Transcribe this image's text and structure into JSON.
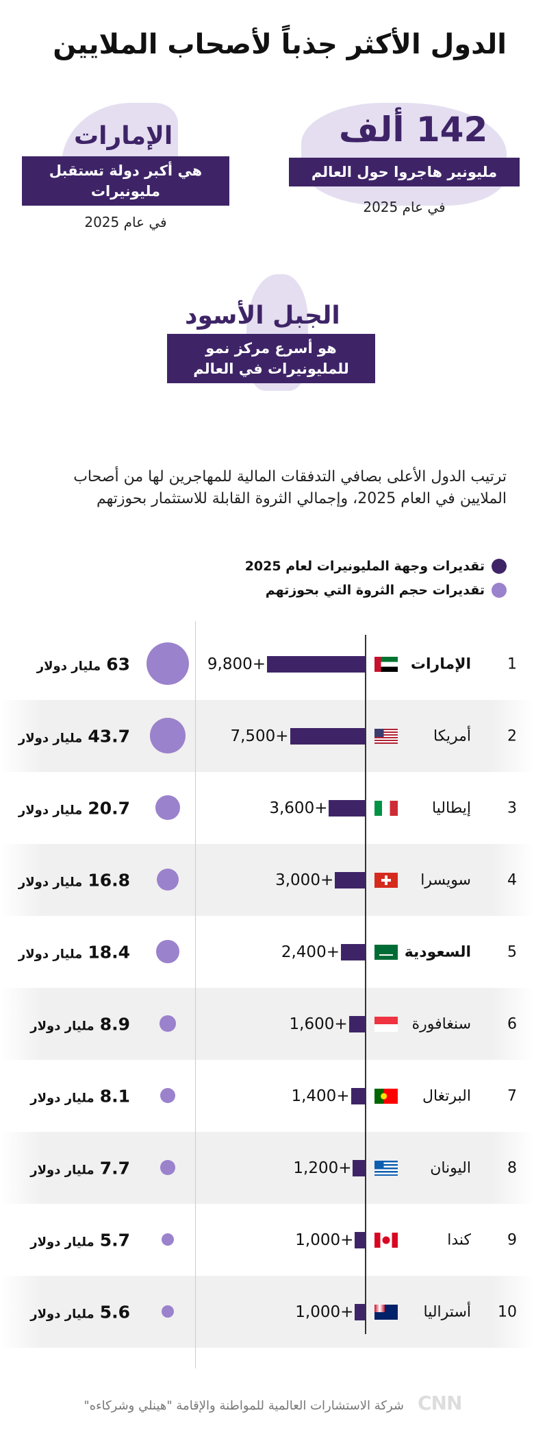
{
  "title": "الدول الأكثر جذباً لأصحاب الملايين",
  "stats": [
    {
      "big": "142 ألف",
      "band": "مليونير هاجروا حول العالم",
      "year": "في عام 2025"
    },
    {
      "big": "الإمارات",
      "band": "هي أكبر دولة تستقبل مليونيرات",
      "year": "في عام 2025"
    },
    {
      "big": "الجبل الأسود",
      "band": "هو أسرع مركز نمو للمليونيرات في العالم"
    }
  ],
  "intro": "ترتيب الدول الأعلى بصافي التدفقات المالية للمهاجرين لها من أصحاب الملايين في العام 2025، وإجمالي الثروة القابلة للاستثمار بحوزتهم",
  "legend": [
    {
      "label": "تقديرات وجهة المليونيرات لعام 2025",
      "color": "#3e2467"
    },
    {
      "label": "تقديرات حجم الثروة التي بحوزتهم",
      "color": "#9b82cc"
    }
  ],
  "colors": {
    "bar": "#3e2467",
    "bubble": "#9b82cc"
  },
  "chart_data": {
    "type": "bar",
    "categories": [
      "الإمارات",
      "أمريكا",
      "إيطاليا",
      "سويسرا",
      "السعودية",
      "سنغافورة",
      "البرتغال",
      "اليونان",
      "كندا",
      "أستراليا"
    ],
    "ranks": [
      "1",
      "2",
      "3",
      "4",
      "5",
      "6",
      "7",
      "8",
      "9",
      "10"
    ],
    "flags": [
      "uae",
      "usa",
      "italy",
      "switzerland",
      "saudi",
      "singapore",
      "portugal",
      "greece",
      "canada",
      "australia"
    ],
    "series": [
      {
        "name": "تقديرات وجهة المليونيرات لعام 2025",
        "values": [
          9800,
          7500,
          3600,
          3000,
          2400,
          1600,
          1400,
          1200,
          1000,
          1000
        ],
        "labels": [
          "9,800+",
          "7,500+",
          "3,600+",
          "3,000+",
          "2,400+",
          "1,600+",
          "1,400+",
          "1,200+",
          "1,000+",
          "1,000+"
        ]
      },
      {
        "name": "تقديرات حجم الثروة التي بحوزتهم",
        "values": [
          63,
          43.7,
          20.7,
          16.8,
          18.4,
          8.9,
          8.1,
          7.7,
          5.7,
          5.6
        ],
        "labels": [
          "63",
          "43.7",
          "20.7",
          "16.8",
          "18.4",
          "8.9",
          "8.1",
          "7.7",
          "5.7",
          "5.6"
        ],
        "unit": "مليار دولار"
      }
    ]
  },
  "source": "شركة الاستشارات العالمية للمواطنة والإقامة \"هينلي وشركاءه\"",
  "logo": "CNN بالعربية"
}
